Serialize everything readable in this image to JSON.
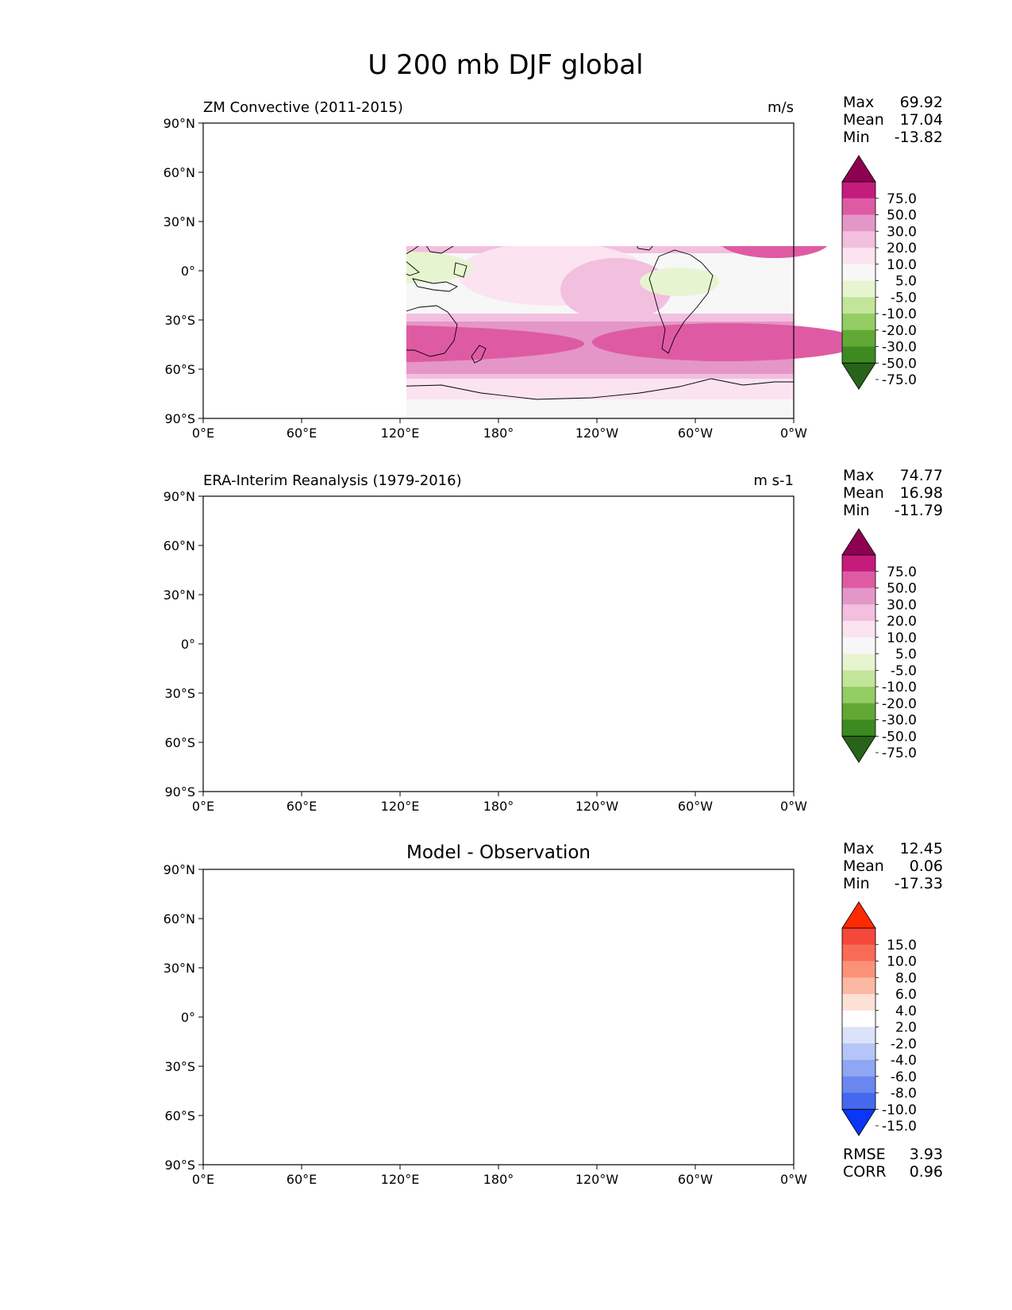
{
  "figure": {
    "title": "U 200 mb DJF global"
  },
  "axes": {
    "lat_ticks": [
      "90°N",
      "60°N",
      "30°N",
      "0°",
      "30°S",
      "60°S",
      "90°S"
    ],
    "lon_ticks": [
      "0°E",
      "60°E",
      "120°E",
      "180°",
      "120°W",
      "60°W",
      "0°W"
    ]
  },
  "panels": [
    {
      "id": "model",
      "left_title": "ZM Convective (2011-2015)",
      "center_title": "",
      "right_title": "m/s",
      "stats": [
        {
          "label": "Max",
          "value": "69.92"
        },
        {
          "label": "Mean",
          "value": "17.04"
        },
        {
          "label": "Min",
          "value": "-13.82"
        }
      ],
      "footer_stats": [],
      "colorbar": {
        "labels": [
          "75.0",
          "50.0",
          "30.0",
          "20.0",
          "10.0",
          "5.0",
          "-5.0",
          "-10.0",
          "-20.0",
          "-30.0",
          "-50.0",
          "-75.0"
        ],
        "colors": [
          "#8e0152",
          "#c51b7d",
          "#de5ba3",
          "#e596c8",
          "#f2bfdf",
          "#fbe3f0",
          "#f7f7f7",
          "#e6f5d0",
          "#c3e59a",
          "#93cd63",
          "#62a834",
          "#3b8b20",
          "#276419"
        ]
      }
    },
    {
      "id": "observation",
      "left_title": "ERA-Interim Reanalysis (1979-2016)",
      "center_title": "",
      "right_title": "m s-1",
      "stats": [
        {
          "label": "Max",
          "value": "74.77"
        },
        {
          "label": "Mean",
          "value": "16.98"
        },
        {
          "label": "Min",
          "value": "-11.79"
        }
      ],
      "footer_stats": [],
      "colorbar": {
        "labels": [
          "75.0",
          "50.0",
          "30.0",
          "20.0",
          "10.0",
          "5.0",
          "-5.0",
          "-10.0",
          "-20.0",
          "-30.0",
          "-50.0",
          "-75.0"
        ],
        "colors": [
          "#8e0152",
          "#c51b7d",
          "#de5ba3",
          "#e596c8",
          "#f2bfdf",
          "#fbe3f0",
          "#f7f7f7",
          "#e6f5d0",
          "#c3e59a",
          "#93cd63",
          "#62a834",
          "#3b8b20",
          "#276419"
        ]
      }
    },
    {
      "id": "difference",
      "left_title": "",
      "center_title": "Model - Observation",
      "right_title": "",
      "stats": [
        {
          "label": "Max",
          "value": "12.45"
        },
        {
          "label": "Mean",
          "value": "0.06"
        },
        {
          "label": "Min",
          "value": "-17.33"
        }
      ],
      "footer_stats": [
        {
          "label": "RMSE",
          "value": "3.93"
        },
        {
          "label": "CORR",
          "value": "0.96"
        }
      ],
      "colorbar": {
        "labels": [
          "15.0",
          "10.0",
          "8.0",
          "6.0",
          "4.0",
          "2.0",
          "-2.0",
          "-4.0",
          "-6.0",
          "-8.0",
          "-10.0",
          "-15.0"
        ],
        "colors": [
          "#ff2a00",
          "#f5473a",
          "#f86b55",
          "#fb9278",
          "#fcb8a2",
          "#fde0d6",
          "#ffffff",
          "#dbe3fb",
          "#b5c5f7",
          "#8fa6f3",
          "#6a87f0",
          "#4569ee",
          "#0a36f5"
        ]
      }
    }
  ]
}
